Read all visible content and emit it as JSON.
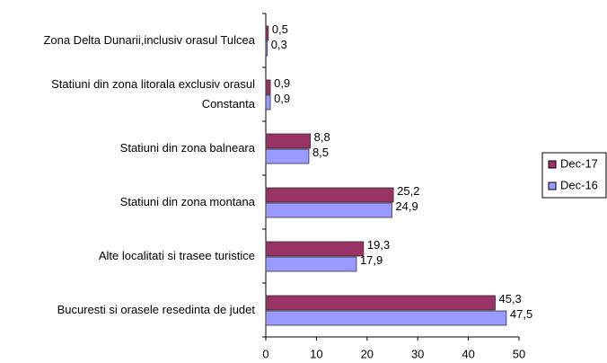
{
  "chart_data": {
    "type": "bar",
    "orientation": "horizontal",
    "categories": [
      "Zona Delta Dunarii,inclusiv  orasul Tulcea",
      "Statiuni din zona litorala exclusiv orasul Constanta",
      "Statiuni din zona balneara",
      "Statiuni din zona montana",
      "Alte localitati si trasee turistice",
      "Bucuresti si orasele resedinta de judet"
    ],
    "series": [
      {
        "name": "Dec-17",
        "color": "#993366",
        "values": [
          0.5,
          0.9,
          8.8,
          25.2,
          19.3,
          45.3
        ],
        "value_labels": [
          "0,5",
          "0,9",
          "8,8",
          "25,2",
          "19,3",
          "45,3"
        ]
      },
      {
        "name": "Dec-16",
        "color": "#9999ff",
        "values": [
          0.3,
          0.9,
          8.5,
          24.9,
          17.9,
          47.5
        ],
        "value_labels": [
          "0,3",
          "0,9",
          "8,5",
          "24,9",
          "17,9",
          "47,5"
        ]
      }
    ],
    "xlim": [
      0,
      50
    ],
    "xticks": [
      0,
      10,
      20,
      30,
      40,
      50
    ],
    "legend": "right"
  }
}
